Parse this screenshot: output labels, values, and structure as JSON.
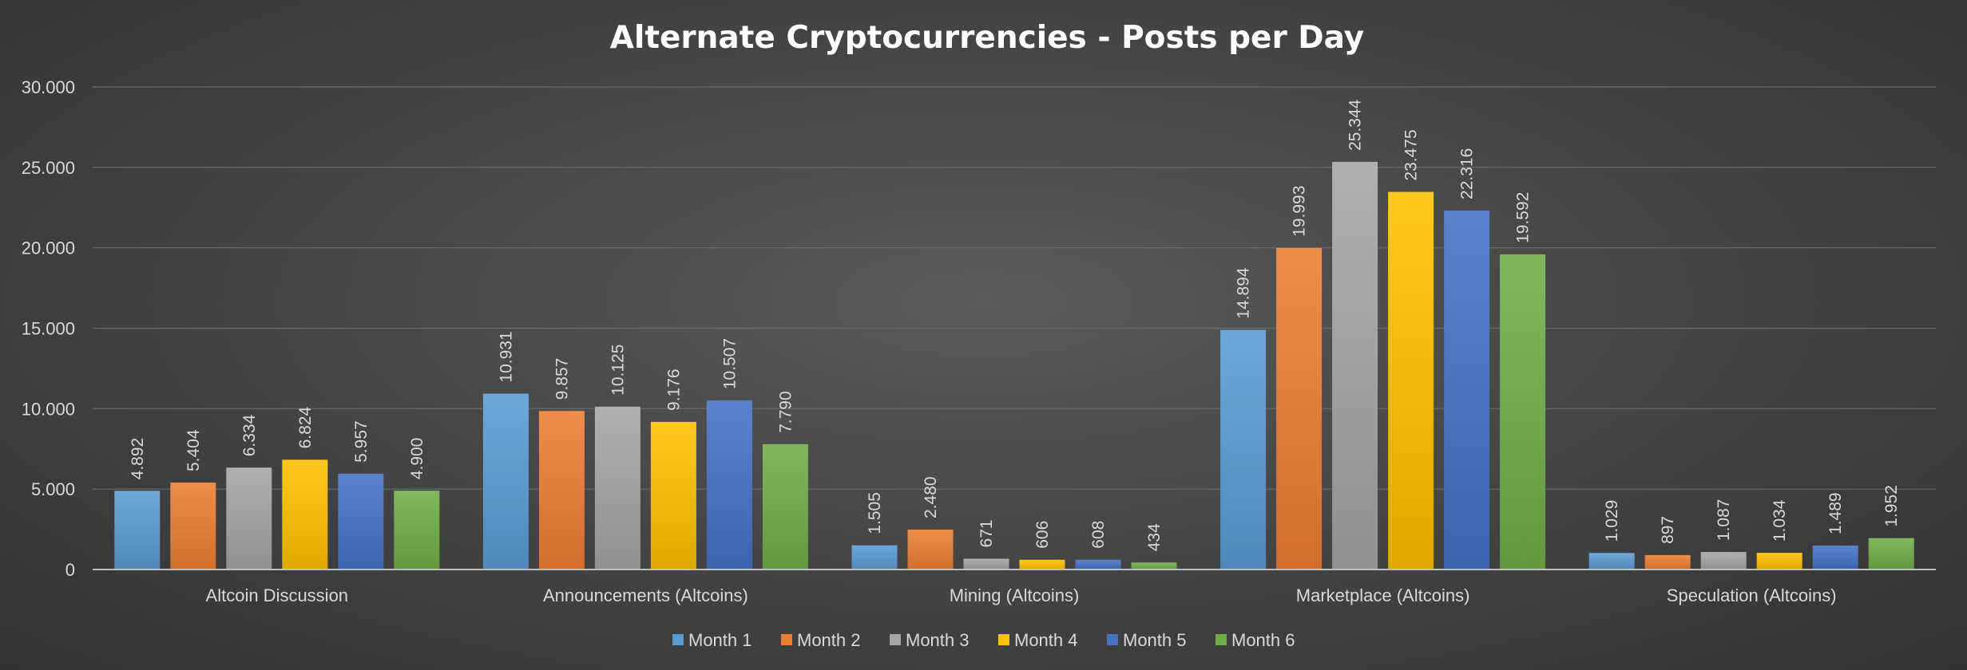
{
  "chart_data": {
    "type": "bar",
    "title": "Alternate Cryptocurrencies - Posts per Day",
    "categories": [
      "Altcoin Discussion",
      "Announcements (Altcoins)",
      "Mining (Altcoins)",
      "Marketplace (Altcoins)",
      "Speculation (Altcoins)"
    ],
    "series": [
      {
        "name": "Month 1",
        "color": "#5b9bd5",
        "values": [
          4892,
          10931,
          1505,
          14894,
          1029
        ],
        "labels": [
          "4.892",
          "10.931",
          "1.505",
          "14.894",
          "1.029"
        ]
      },
      {
        "name": "Month 2",
        "color": "#ed7d31",
        "values": [
          5404,
          9857,
          2480,
          19993,
          897
        ],
        "labels": [
          "5.404",
          "9.857",
          "2.480",
          "19.993",
          "897"
        ]
      },
      {
        "name": "Month 3",
        "color": "#a5a5a5",
        "values": [
          6334,
          10125,
          671,
          25344,
          1087
        ],
        "labels": [
          "6.334",
          "10.125",
          "671",
          "25.344",
          "1.087"
        ]
      },
      {
        "name": "Month 4",
        "color": "#ffc000",
        "values": [
          6824,
          9176,
          606,
          23475,
          1034
        ],
        "labels": [
          "6.824",
          "9.176",
          "606",
          "23.475",
          "1.034"
        ]
      },
      {
        "name": "Month 5",
        "color": "#4472c4",
        "values": [
          5957,
          10507,
          608,
          22316,
          1489
        ],
        "labels": [
          "5.957",
          "10.507",
          "608",
          "22.316",
          "1.489"
        ]
      },
      {
        "name": "Month 6",
        "color": "#70ad47",
        "values": [
          4900,
          7790,
          434,
          19592,
          1952
        ],
        "labels": [
          "4.900",
          "7.790",
          "434",
          "19.592",
          "1.952"
        ]
      }
    ],
    "y_ticks": [
      0,
      5000,
      10000,
      15000,
      20000,
      25000,
      30000
    ],
    "y_tick_labels": [
      "0",
      "5.000",
      "10.000",
      "15.000",
      "20.000",
      "25.000",
      "30.000"
    ],
    "ylim": [
      0,
      30000
    ],
    "grid": true,
    "legend_position": "bottom"
  }
}
